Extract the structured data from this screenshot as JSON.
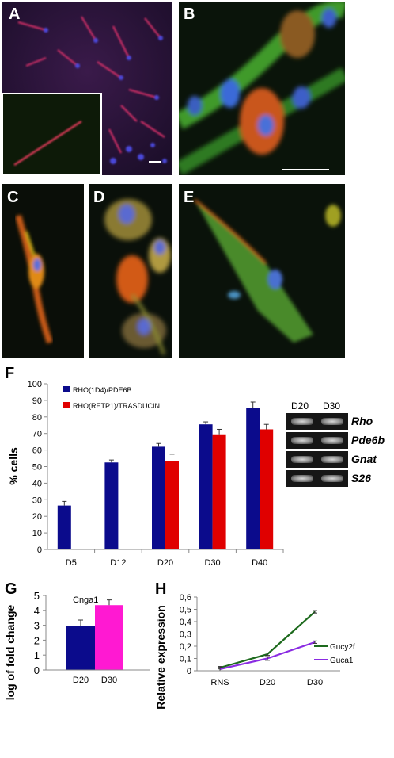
{
  "panels": {
    "A": "A",
    "B": "B",
    "C": "C",
    "D": "D",
    "E": "E",
    "F": "F",
    "G": "G",
    "H": "H"
  },
  "colors": {
    "f_series1": "#0b0b8c",
    "f_series2": "#e00000",
    "g_d20": "#0b0b8c",
    "g_d30": "#ff19d2",
    "h_gucy2f": "#1d6a1d",
    "h_guca1": "#8a2be2"
  },
  "gel": {
    "lanes": [
      "D20",
      "D30"
    ],
    "genes": [
      "Rho",
      "Pde6b",
      "Gnat",
      "S26"
    ]
  },
  "chart_data": [
    {
      "panel": "F",
      "type": "bar",
      "categories": [
        "D5",
        "D12",
        "D20",
        "D30",
        "D40"
      ],
      "series": [
        {
          "name": "RHO(1D4)/PDE6B",
          "values": [
            26.5,
            52.5,
            62,
            75.5,
            85.5
          ],
          "errors": [
            2.5,
            1.5,
            2,
            1.5,
            3.5
          ]
        },
        {
          "name": "RHO(RETP1)/TRASDUCIN",
          "values": [
            null,
            null,
            53.5,
            69.5,
            72.5
          ],
          "errors": [
            null,
            null,
            4,
            3,
            3
          ]
        }
      ],
      "ylabel": "% cells",
      "ylim": [
        0,
        100
      ],
      "yticks": [
        0,
        10,
        20,
        30,
        40,
        50,
        60,
        70,
        80,
        90,
        100
      ],
      "legend": "top-left"
    },
    {
      "panel": "G",
      "type": "bar",
      "title": "Cnga1",
      "categories": [
        "D20",
        "D30"
      ],
      "values": [
        2.95,
        4.35
      ],
      "errors": [
        0.4,
        0.35
      ],
      "ylabel": "log of fold change",
      "ylim": [
        0,
        5
      ],
      "yticks": [
        0,
        1,
        2,
        3,
        4,
        5
      ]
    },
    {
      "panel": "H",
      "type": "line",
      "categories": [
        "RNS",
        "D20",
        "D30"
      ],
      "series": [
        {
          "name": "Gucy2f",
          "values": [
            0.025,
            0.135,
            0.48
          ],
          "errors": [
            0.01,
            0.01,
            0.01
          ]
        },
        {
          "name": "Guca1",
          "values": [
            0.013,
            0.1,
            0.233
          ],
          "errors": [
            0.015,
            0.015,
            0.01
          ]
        }
      ],
      "ylabel": "Relative expression",
      "ylim": [
        0,
        0.6
      ],
      "yticks": [
        "0",
        "0,1",
        "0,2",
        "0,3",
        "0,4",
        "0,5",
        "0,6"
      ],
      "legend": "right"
    }
  ]
}
